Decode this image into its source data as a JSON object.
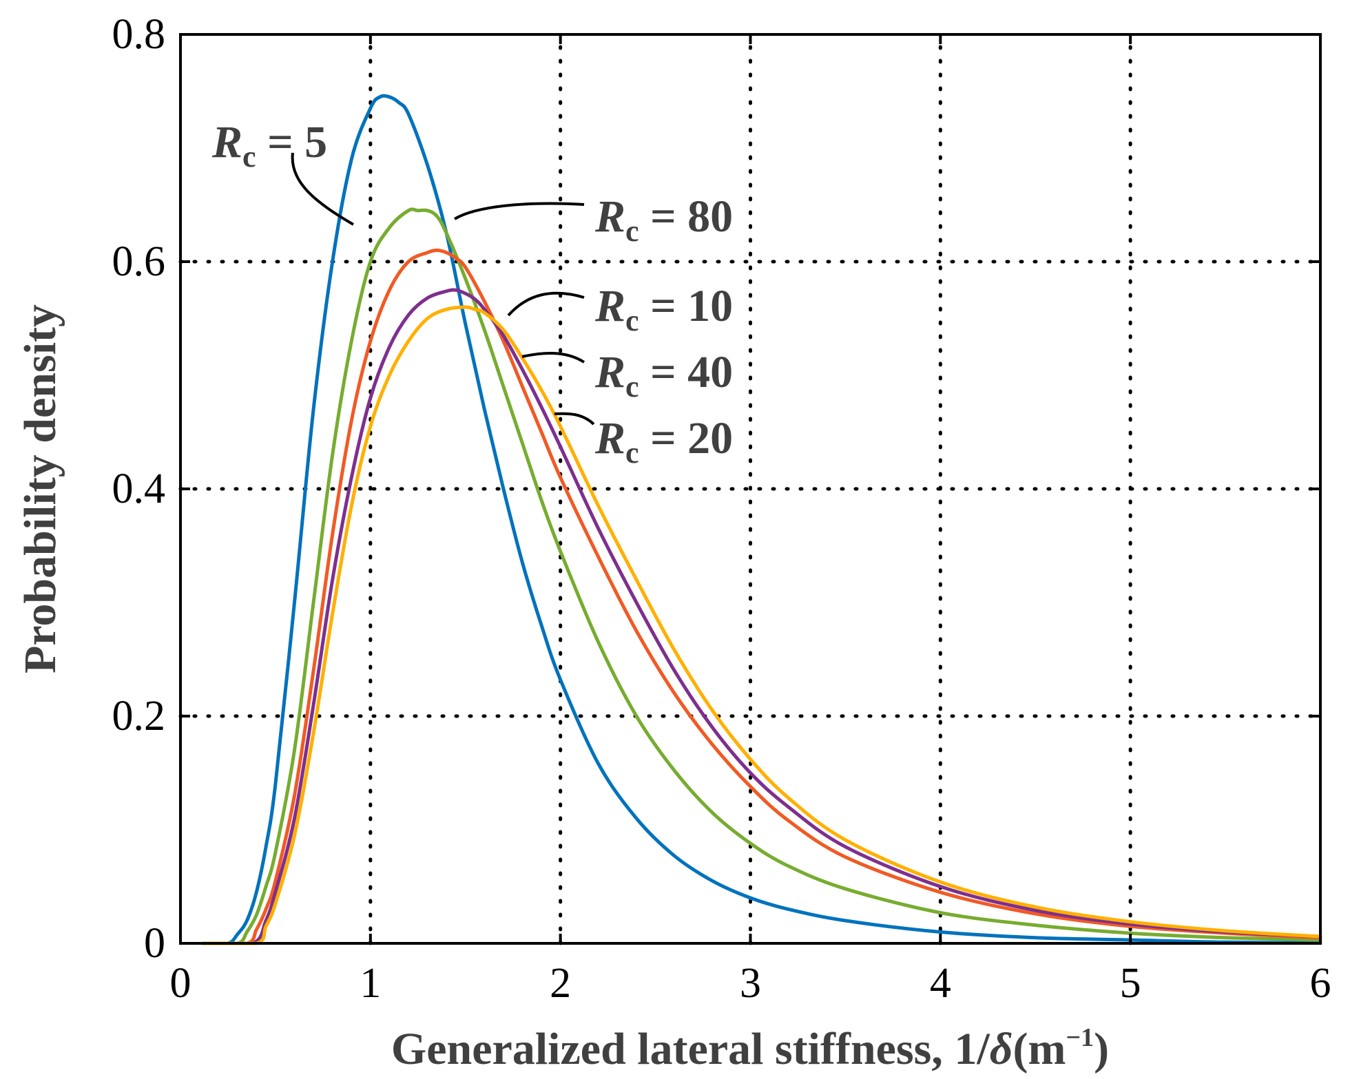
{
  "chart_data": {
    "type": "line",
    "title": "",
    "xlabel": "Generalized lateral stiffness, 1/",
    "xlabel_symbol": "δ",
    "xlabel_unit_open": "(m",
    "xlabel_unit_exp": "−1",
    "xlabel_unit_close": ")",
    "ylabel": "Probability density",
    "xlim": [
      0,
      6
    ],
    "ylim": [
      0,
      0.8
    ],
    "xticks": [
      0,
      1,
      2,
      3,
      4,
      5,
      6
    ],
    "xtick_labels": [
      "0",
      "1",
      "2",
      "3",
      "4",
      "5",
      "6"
    ],
    "yticks": [
      0,
      0.2,
      0.4,
      0.6,
      0.8
    ],
    "ytick_labels": [
      "0",
      "0.2",
      "0.4",
      "0.6",
      "0.8"
    ],
    "grid": true,
    "series": [
      {
        "name": "Rc = 5",
        "color": "#0072BD",
        "x": [
          0.12,
          0.25,
          0.3,
          0.35,
          0.4,
          0.45,
          0.5,
          0.6,
          0.7,
          0.8,
          0.9,
          1.0,
          1.05,
          1.1,
          1.15,
          1.2,
          1.3,
          1.4,
          1.5,
          1.6,
          1.7,
          1.8,
          1.9,
          2.0,
          2.2,
          2.4,
          2.6,
          2.8,
          3.0,
          3.2,
          3.5,
          4.0,
          4.5,
          5.0,
          5.5,
          6.0
        ],
        "y": [
          0.0,
          0.0,
          0.008,
          0.02,
          0.045,
          0.085,
          0.14,
          0.3,
          0.47,
          0.6,
          0.69,
          0.735,
          0.745,
          0.745,
          0.74,
          0.73,
          0.685,
          0.625,
          0.545,
          0.47,
          0.4,
          0.335,
          0.28,
          0.232,
          0.158,
          0.11,
          0.077,
          0.055,
          0.04,
          0.03,
          0.02,
          0.01,
          0.005,
          0.003,
          0.001,
          0.0005
        ]
      },
      {
        "name": "Rc = 80",
        "color": "#77AC30",
        "x": [
          0.12,
          0.3,
          0.35,
          0.4,
          0.45,
          0.5,
          0.6,
          0.7,
          0.8,
          0.9,
          1.0,
          1.1,
          1.2,
          1.25,
          1.3,
          1.35,
          1.4,
          1.5,
          1.6,
          1.7,
          1.8,
          1.9,
          2.0,
          2.2,
          2.4,
          2.6,
          2.8,
          3.0,
          3.2,
          3.5,
          4.0,
          4.5,
          5.0,
          5.5,
          6.0
        ],
        "y": [
          0.0,
          0.0,
          0.01,
          0.025,
          0.05,
          0.08,
          0.17,
          0.3,
          0.43,
          0.53,
          0.6,
          0.63,
          0.645,
          0.645,
          0.645,
          0.64,
          0.625,
          0.585,
          0.54,
          0.49,
          0.44,
          0.39,
          0.345,
          0.265,
          0.2,
          0.152,
          0.115,
          0.088,
          0.068,
          0.048,
          0.027,
          0.016,
          0.009,
          0.005,
          0.003
        ]
      },
      {
        "name": "Rc = 10",
        "color": "#F15A24",
        "x": [
          0.12,
          0.35,
          0.4,
          0.45,
          0.5,
          0.6,
          0.7,
          0.8,
          0.9,
          1.0,
          1.1,
          1.2,
          1.3,
          1.35,
          1.4,
          1.45,
          1.5,
          1.6,
          1.7,
          1.8,
          1.9,
          2.0,
          2.2,
          2.4,
          2.6,
          2.8,
          3.0,
          3.2,
          3.5,
          4.0,
          4.5,
          5.0,
          5.5,
          6.0
        ],
        "y": [
          0.0,
          0.0,
          0.012,
          0.03,
          0.055,
          0.13,
          0.24,
          0.36,
          0.46,
          0.53,
          0.575,
          0.6,
          0.608,
          0.61,
          0.608,
          0.603,
          0.595,
          0.565,
          0.53,
          0.49,
          0.45,
          0.41,
          0.34,
          0.275,
          0.22,
          0.175,
          0.138,
          0.108,
          0.076,
          0.045,
          0.026,
          0.015,
          0.009,
          0.005
        ]
      },
      {
        "name": "Rc = 40",
        "color": "#7E2F8E",
        "x": [
          0.12,
          0.38,
          0.45,
          0.5,
          0.6,
          0.7,
          0.8,
          0.9,
          1.0,
          1.1,
          1.2,
          1.3,
          1.4,
          1.45,
          1.5,
          1.55,
          1.6,
          1.7,
          1.8,
          1.9,
          2.0,
          2.2,
          2.4,
          2.6,
          2.8,
          3.0,
          3.2,
          3.5,
          4.0,
          4.5,
          5.0,
          5.5,
          6.0
        ],
        "y": [
          0.0,
          0.0,
          0.02,
          0.045,
          0.11,
          0.21,
          0.32,
          0.41,
          0.48,
          0.525,
          0.553,
          0.568,
          0.574,
          0.575,
          0.572,
          0.567,
          0.558,
          0.535,
          0.505,
          0.472,
          0.437,
          0.365,
          0.3,
          0.24,
          0.19,
          0.15,
          0.12,
          0.085,
          0.05,
          0.029,
          0.017,
          0.01,
          0.006
        ]
      },
      {
        "name": "Rc = 20",
        "color": "#FFB000",
        "x": [
          0.12,
          0.4,
          0.45,
          0.5,
          0.6,
          0.7,
          0.8,
          0.9,
          1.0,
          1.1,
          1.2,
          1.3,
          1.4,
          1.5,
          1.55,
          1.6,
          1.7,
          1.8,
          1.9,
          2.0,
          2.2,
          2.4,
          2.6,
          2.8,
          3.0,
          3.2,
          3.5,
          4.0,
          4.5,
          5.0,
          5.5,
          6.0
        ],
        "y": [
          0.0,
          0.0,
          0.015,
          0.035,
          0.095,
          0.185,
          0.29,
          0.385,
          0.455,
          0.5,
          0.53,
          0.55,
          0.558,
          0.56,
          0.558,
          0.555,
          0.54,
          0.515,
          0.487,
          0.455,
          0.385,
          0.32,
          0.258,
          0.205,
          0.162,
          0.128,
          0.091,
          0.054,
          0.032,
          0.019,
          0.011,
          0.006
        ]
      }
    ],
    "annotations": [
      {
        "series": "Rc = 5",
        "symbol": "R",
        "sub": "c",
        "rest": " = 5"
      },
      {
        "series": "Rc = 80",
        "symbol": "R",
        "sub": "c",
        "rest": " = 80"
      },
      {
        "series": "Rc = 10",
        "symbol": "R",
        "sub": "c",
        "rest": " = 10"
      },
      {
        "series": "Rc = 40",
        "symbol": "R",
        "sub": "c",
        "rest": " = 40"
      },
      {
        "series": "Rc = 20",
        "symbol": "R",
        "sub": "c",
        "rest": " = 20"
      }
    ]
  }
}
